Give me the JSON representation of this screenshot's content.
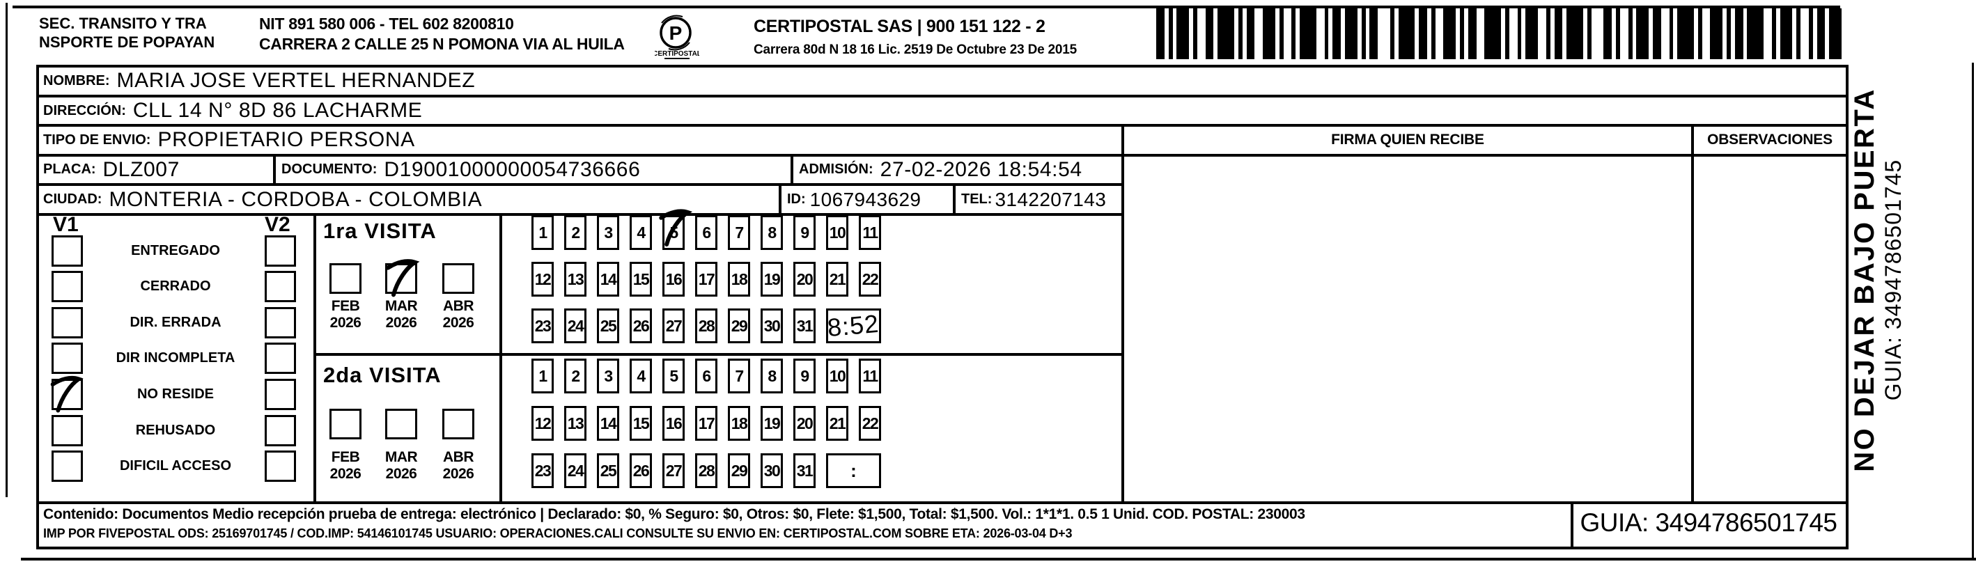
{
  "colors": {
    "ink": "#000000",
    "paper": "#ffffff"
  },
  "header": {
    "sender_line1": "SEC. TRANSITO Y TRA",
    "sender_line2": "NSPORTE DE POPAYAN",
    "sender_nit": "NIT 891 580 006 - TEL 602 8200810",
    "sender_address": "CARRERA 2 CALLE 25 N POMONA VIA AL HUILA",
    "logo_caption": "CERTIPOSTAL",
    "logo_letter": "P",
    "carrier_name": "CERTIPOSTAL SAS | 900 151 122 - 2",
    "carrier_address": "Carrera 80d N 18 16  Lic. 2519 De Octubre 23 De 2015",
    "barcode_pattern": [
      2,
      1,
      1,
      1,
      3,
      1,
      1,
      2,
      2,
      1,
      4,
      1,
      1,
      1,
      2,
      2,
      3,
      1,
      1,
      2,
      1,
      1,
      4,
      2,
      1,
      1,
      2,
      1,
      3,
      1,
      1,
      1,
      2,
      3,
      1,
      1,
      4,
      1,
      2,
      1,
      1,
      2,
      3,
      1,
      1,
      1,
      2,
      2,
      4,
      1,
      1,
      2,
      1,
      1,
      3,
      2,
      1,
      1,
      2,
      1,
      4,
      1,
      1,
      3,
      2,
      1,
      1,
      2,
      1,
      1,
      3,
      1,
      2,
      2,
      1,
      1,
      4,
      1,
      1,
      2,
      3,
      1,
      1,
      1,
      2,
      1,
      4,
      2,
      1,
      1,
      3,
      1,
      1,
      2,
      1,
      1,
      2,
      1,
      3
    ]
  },
  "recipient": {
    "nombre_label": "NOMBRE:",
    "nombre": "MARIA JOSE VERTEL HERNANDEZ",
    "direccion_label": "DIRECCIÓN:",
    "direccion": "CLL 14 N° 8D 86 LACHARME",
    "tipo_envio_label": "TIPO DE ENVIO:",
    "tipo_envio": "PROPIETARIO PERSONA",
    "placa_label": "PLACA:",
    "placa": "DLZ007",
    "documento_label": "DOCUMENTO:",
    "documento": "D19001000000054736666",
    "admision_label": "ADMISIÓN:",
    "admision": "27-02-2026 18:54:54",
    "ciudad_label": "CIUDAD:",
    "ciudad": "MONTERIA - CORDOBA - COLOMBIA",
    "id_label": "ID:",
    "id": "1067943629",
    "tel_label": "TEL:",
    "tel": "3142207143"
  },
  "table_headers": {
    "firma": "FIRMA QUIEN RECIBE",
    "observaciones": "OBSERVACIONES"
  },
  "status_panel": {
    "v1_label": "V1",
    "v2_label": "V2",
    "options": [
      {
        "label": "ENTREGADO",
        "v1_checked": false,
        "v2_checked": false
      },
      {
        "label": "CERRADO",
        "v1_checked": false,
        "v2_checked": false
      },
      {
        "label": "DIR. ERRADA",
        "v1_checked": false,
        "v2_checked": false
      },
      {
        "label": "DIR INCOMPLETA",
        "v1_checked": false,
        "v2_checked": false
      },
      {
        "label": "NO RESIDE",
        "v1_checked": true,
        "v2_checked": false
      },
      {
        "label": "REHUSADO",
        "v1_checked": false,
        "v2_checked": false
      },
      {
        "label": "DIFICIL ACCESO",
        "v1_checked": false,
        "v2_checked": false
      }
    ]
  },
  "visits": [
    {
      "title": "1ra VISITA",
      "months": [
        {
          "label": "FEB",
          "year": "2026",
          "checked": false
        },
        {
          "label": "MAR",
          "year": "2026",
          "checked": true
        },
        {
          "label": "ABR",
          "year": "2026",
          "checked": false
        }
      ],
      "days": [
        1,
        2,
        3,
        4,
        5,
        6,
        7,
        8,
        9,
        10,
        11,
        12,
        13,
        14,
        15,
        16,
        17,
        18,
        19,
        20,
        21,
        22,
        23,
        24,
        25,
        26,
        27,
        28,
        29,
        30,
        31
      ],
      "checked_days": [
        5
      ],
      "time": "8:52"
    },
    {
      "title": "2da VISITA",
      "months": [
        {
          "label": "FEB",
          "year": "2026",
          "checked": false
        },
        {
          "label": "MAR",
          "year": "2026",
          "checked": false
        },
        {
          "label": "ABR",
          "year": "2026",
          "checked": false
        }
      ],
      "days": [
        1,
        2,
        3,
        4,
        5,
        6,
        7,
        8,
        9,
        10,
        11,
        12,
        13,
        14,
        15,
        16,
        17,
        18,
        19,
        20,
        21,
        22,
        23,
        24,
        25,
        26,
        27,
        28,
        29,
        30,
        31
      ],
      "checked_days": [],
      "time": ""
    }
  ],
  "side_note": {
    "line1": "NO DEJAR BAJO PUERTA",
    "line2": "GUIA: 3494786501745"
  },
  "footer": {
    "contenido": "Contenido: Documentos Medio recepción prueba de entrega: electrónico | Declarado: $0, % Seguro: $0, Otros: $0, Flete: $1,500, Total: $1,500. Vol.: 1*1*1. 0.5  1 Unid. COD. POSTAL: 230003",
    "imp_line": "IMP POR FIVEPOSTAL ODS: 25169701745 / COD.IMP: 54146101745 USUARIO: OPERACIONES.CALI CONSULTE SU ENVIO EN: CERTIPOSTAL.COM SOBRE ETA: 2026-03-04 D+3",
    "guia": "GUIA: 3494786501745"
  }
}
